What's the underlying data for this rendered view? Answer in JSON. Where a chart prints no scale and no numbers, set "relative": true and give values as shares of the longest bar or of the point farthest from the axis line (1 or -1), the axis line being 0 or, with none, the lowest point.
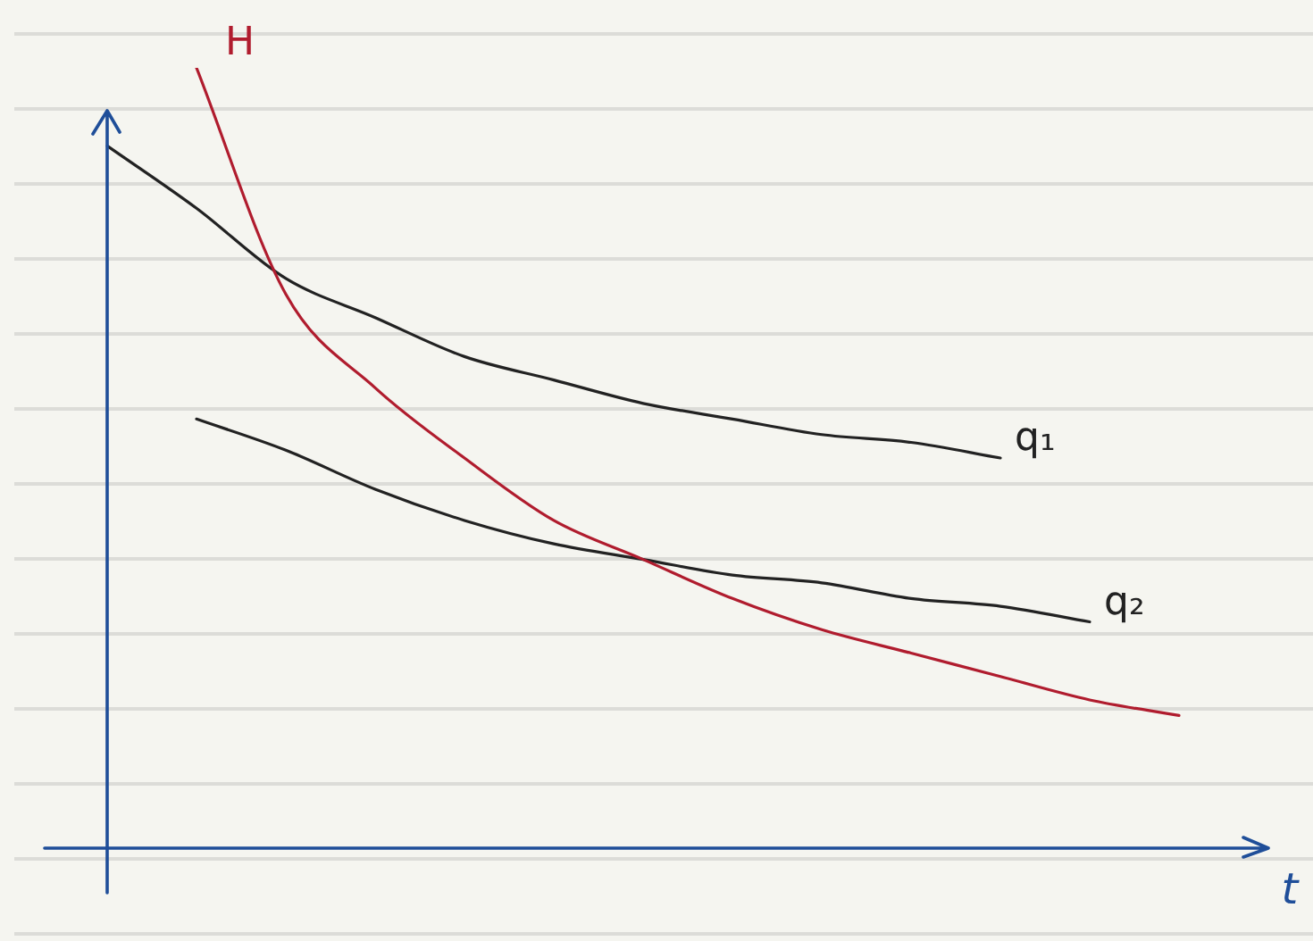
{
  "chart_data": {
    "type": "line",
    "relative": true,
    "xlabel": "t",
    "legend": false,
    "grid": false,
    "marker": "none",
    "line_style": "solid",
    "categories": [
      null,
      null,
      null,
      null,
      null,
      null,
      null,
      null,
      null,
      null,
      null,
      null,
      null,
      null
    ],
    "series": [
      {
        "name": "H",
        "color": "#b01c2e",
        "values": [
          null,
          1.0,
          0.71,
          0.59,
          0.5,
          0.42,
          0.37,
          0.32,
          0.28,
          0.25,
          0.22,
          0.19,
          0.17,
          null
        ]
      },
      {
        "name": "q₁",
        "color": "#222222",
        "values": [
          0.9,
          0.82,
          0.73,
          0.68,
          0.63,
          0.6,
          0.57,
          0.55,
          0.53,
          0.52,
          0.5,
          null,
          null,
          null
        ]
      },
      {
        "name": "q₂",
        "color": "#222222",
        "values": [
          null,
          0.55,
          0.51,
          0.46,
          0.42,
          0.39,
          0.37,
          0.35,
          0.34,
          0.32,
          0.31,
          0.29,
          null,
          null
        ]
      }
    ]
  }
}
